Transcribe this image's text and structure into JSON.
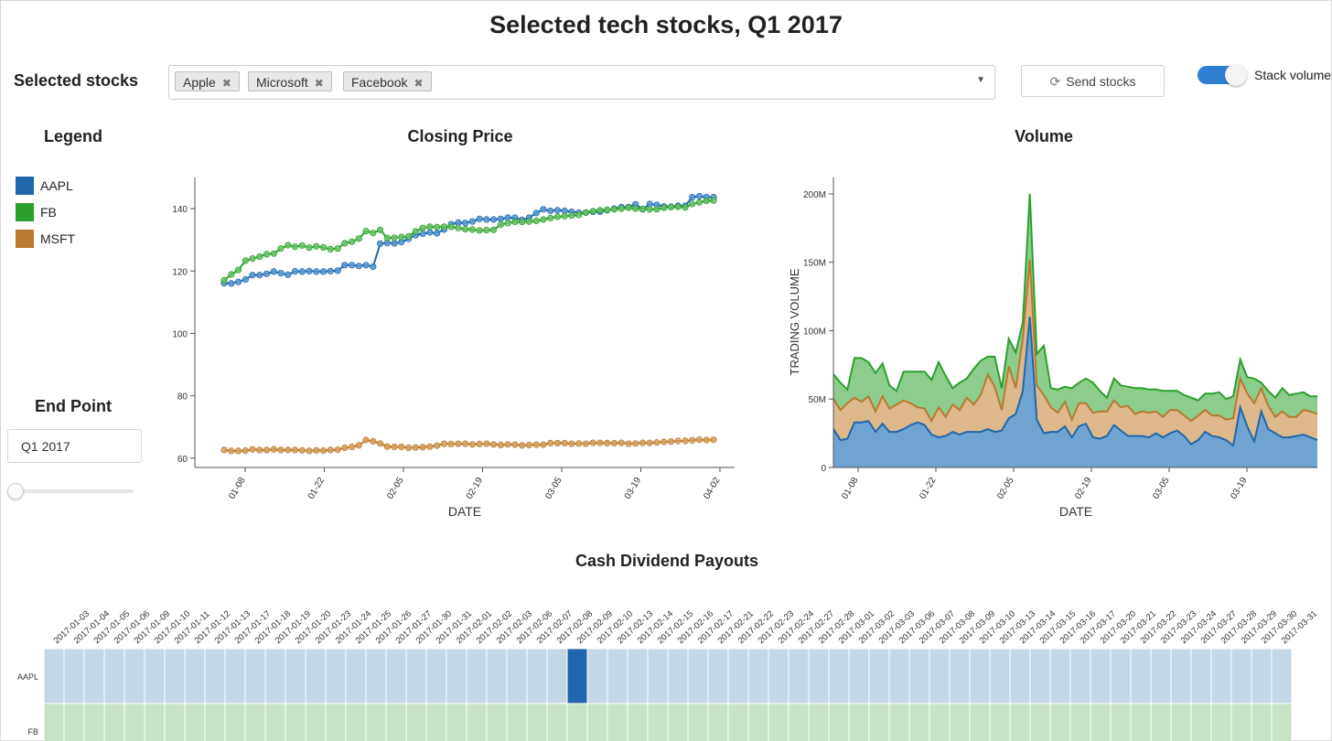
{
  "page": {
    "title": "Selected tech stocks, Q1 2017"
  },
  "controls": {
    "selected_label": "Selected stocks",
    "chips": [
      {
        "label": "Apple",
        "remove": "✖"
      },
      {
        "label": "Microsoft",
        "remove": "✖"
      },
      {
        "label": "Facebook",
        "remove": "✖"
      }
    ],
    "dropdown_caret": "▼",
    "send_icon": "⟳",
    "send_label": "Send stocks",
    "stack_label": "Stack volume"
  },
  "legend": {
    "title": "Legend",
    "items": [
      {
        "label": "AAPL",
        "color": "#2166ac"
      },
      {
        "label": "FB",
        "color": "#2ca02c"
      },
      {
        "label": "MSFT",
        "color": "#b97a2e"
      }
    ]
  },
  "endpoint": {
    "title": "End Point",
    "value": "Q1 2017",
    "slider": 0
  },
  "colors": {
    "aapl": "#2166ac",
    "aapl_point": "#5b9bd5",
    "fb": "#2ca02c",
    "fb_point": "#6cc36c",
    "msft": "#b97a2e",
    "msft_point": "#d6a15e",
    "aapl_area": "#6fa4d2",
    "msft_area": "#dcb88a",
    "fb_area": "#8ccd8c",
    "heat_aapl_light": "#c4d7e7",
    "heat_aapl_dark": "#1f66ae",
    "heat_fb_light": "#c7e2c5"
  },
  "chart_data": [
    {
      "type": "line",
      "title": "Closing Price",
      "xlabel": "DATE",
      "ylabel": "",
      "ylim": [
        57,
        150
      ],
      "x_ticks": [
        "01-08",
        "01-22",
        "02-05",
        "02-19",
        "03-05",
        "03-19",
        "04-02"
      ],
      "y_ticks": [
        60,
        80,
        100,
        120,
        140
      ],
      "series": [
        {
          "name": "AAPL",
          "values": [
            116.1,
            116.0,
            116.5,
            117.3,
            118.7,
            118.7,
            119.1,
            119.8,
            119.3,
            118.8,
            119.9,
            119.8,
            120.0,
            119.8,
            119.8,
            120.0,
            120.1,
            121.9,
            121.9,
            121.6,
            121.9,
            121.4,
            128.8,
            129.0,
            128.9,
            129.3,
            130.3,
            131.5,
            132.0,
            132.4,
            132.1,
            133.3,
            135.0,
            135.5,
            135.4,
            135.9,
            136.7,
            136.5,
            136.5,
            136.7,
            137.1,
            137.1,
            136.4,
            137.1,
            138.6,
            139.8,
            139.3,
            139.5,
            139.3,
            139.0,
            138.7,
            138.7,
            139.0,
            139.0,
            139.5,
            140.0,
            140.5,
            140.5,
            141.4,
            139.8,
            141.5,
            141.2,
            140.7,
            140.6,
            140.9,
            140.9,
            143.7,
            144.0,
            143.7,
            143.7
          ]
        },
        {
          "name": "FB",
          "values": [
            117.0,
            118.9,
            120.3,
            123.3,
            124.0,
            124.6,
            125.4,
            125.6,
            127.2,
            128.3,
            127.8,
            128.2,
            127.5,
            127.9,
            127.6,
            127.0,
            127.2,
            128.9,
            129.4,
            130.4,
            132.8,
            132.2,
            133.2,
            130.6,
            130.7,
            130.9,
            131.1,
            132.7,
            133.8,
            134.2,
            134.1,
            134.2,
            134.2,
            133.8,
            133.4,
            133.3,
            133.0,
            133.1,
            133.2,
            134.9,
            135.4,
            135.8,
            135.7,
            135.9,
            136.1,
            136.5,
            137.0,
            137.4,
            137.6,
            137.8,
            138.0,
            138.8,
            139.2,
            139.5,
            139.6,
            139.8,
            140.0,
            140.3,
            140.0,
            139.9,
            139.8,
            139.8,
            140.3,
            140.5,
            140.6,
            140.4,
            141.5,
            142.0,
            142.5,
            142.6
          ]
        },
        {
          "name": "MSFT",
          "values": [
            62.6,
            62.3,
            62.3,
            62.4,
            62.8,
            62.6,
            62.6,
            62.8,
            62.6,
            62.6,
            62.6,
            62.5,
            62.3,
            62.5,
            62.4,
            62.6,
            62.7,
            63.3,
            63.6,
            64.1,
            65.8,
            65.4,
            64.7,
            63.7,
            63.6,
            63.6,
            63.3,
            63.4,
            63.5,
            63.7,
            64.0,
            64.6,
            64.5,
            64.6,
            64.6,
            64.4,
            64.5,
            64.6,
            64.4,
            64.2,
            64.4,
            64.3,
            64.1,
            64.2,
            64.3,
            64.3,
            64.8,
            64.8,
            64.8,
            64.6,
            64.7,
            64.6,
            64.9,
            64.9,
            64.8,
            64.8,
            64.9,
            64.6,
            64.7,
            64.9,
            64.9,
            65.0,
            65.2,
            65.3,
            65.5,
            65.5,
            65.7,
            65.9,
            65.8,
            65.9
          ]
        }
      ]
    },
    {
      "type": "area",
      "title": "Volume",
      "xlabel": "DATE",
      "ylabel": "TRADING VOLUME",
      "stacked": true,
      "ylim": [
        0,
        212000000
      ],
      "x_ticks": [
        "01-08",
        "01-22",
        "02-05",
        "02-19",
        "03-05",
        "03-19"
      ],
      "y_ticks": [
        0,
        50000000,
        100000000,
        150000000,
        200000000
      ],
      "y_tick_labels": [
        "0",
        "50M",
        "100M",
        "150M",
        "200M"
      ],
      "series": [
        {
          "name": "AAPL",
          "values": [
            28,
            20,
            21,
            33,
            33,
            34,
            26,
            32,
            26,
            26,
            28,
            31,
            33,
            31,
            24,
            22,
            23,
            26,
            24,
            26,
            26,
            26,
            28,
            26,
            27,
            36,
            39,
            56,
            110,
            35,
            25,
            26,
            26,
            30,
            22,
            30,
            32,
            22,
            21,
            23,
            31,
            27,
            23,
            23,
            23,
            22,
            25,
            22,
            25,
            27,
            23,
            17,
            20,
            26,
            23,
            22,
            20,
            16,
            44,
            30,
            19,
            41,
            28,
            25,
            22,
            22,
            23,
            24,
            22,
            20
          ]
        },
        {
          "name": "MSFT",
          "values": [
            22,
            22,
            26,
            18,
            15,
            18,
            15,
            20,
            17,
            20,
            21,
            16,
            11,
            12,
            10,
            22,
            14,
            20,
            18,
            25,
            20,
            27,
            40,
            33,
            15,
            38,
            19,
            38,
            42,
            25,
            28,
            18,
            14,
            18,
            13,
            17,
            15,
            18,
            20,
            18,
            18,
            17,
            22,
            16,
            18,
            18,
            16,
            15,
            17,
            15,
            15,
            17,
            18,
            16,
            15,
            16,
            15,
            20,
            21,
            24,
            28,
            17,
            17,
            12,
            19,
            15,
            14,
            18,
            19,
            19
          ]
        },
        {
          "name": "FB",
          "values": [
            18,
            20,
            10,
            29,
            32,
            25,
            28,
            24,
            17,
            10,
            21,
            23,
            26,
            27,
            30,
            33,
            30,
            12,
            20,
            14,
            26,
            25,
            13,
            22,
            16,
            20,
            26,
            12,
            48,
            23,
            36,
            14,
            17,
            11,
            23,
            15,
            18,
            22,
            15,
            10,
            16,
            16,
            14,
            19,
            17,
            17,
            16,
            19,
            14,
            14,
            15,
            17,
            11,
            12,
            16,
            17,
            15,
            16,
            14,
            12,
            18,
            4,
            11,
            14,
            17,
            16,
            17,
            13,
            11,
            13
          ]
        }
      ]
    },
    {
      "type": "heatmap",
      "title": "Cash Dividend Payouts",
      "rows": [
        "AAPL",
        "FB"
      ],
      "columns": [
        "2017-01-03",
        "2017-01-04",
        "2017-01-05",
        "2017-01-06",
        "2017-01-09",
        "2017-01-10",
        "2017-01-11",
        "2017-01-12",
        "2017-01-13",
        "2017-01-17",
        "2017-01-18",
        "2017-01-19",
        "2017-01-20",
        "2017-01-23",
        "2017-01-24",
        "2017-01-25",
        "2017-01-26",
        "2017-01-27",
        "2017-01-30",
        "2017-01-31",
        "2017-02-01",
        "2017-02-02",
        "2017-02-03",
        "2017-02-06",
        "2017-02-07",
        "2017-02-08",
        "2017-02-09",
        "2017-02-10",
        "2017-02-13",
        "2017-02-14",
        "2017-02-15",
        "2017-02-16",
        "2017-02-17",
        "2017-02-21",
        "2017-02-22",
        "2017-02-23",
        "2017-02-24",
        "2017-02-27",
        "2017-02-28",
        "2017-03-01",
        "2017-03-02",
        "2017-03-03",
        "2017-03-06",
        "2017-03-07",
        "2017-03-08",
        "2017-03-09",
        "2017-03-10",
        "2017-03-13",
        "2017-03-14",
        "2017-03-15",
        "2017-03-16",
        "2017-03-17",
        "2017-03-20",
        "2017-03-21",
        "2017-03-22",
        "2017-03-23",
        "2017-03-24",
        "2017-03-27",
        "2017-03-28",
        "2017-03-29",
        "2017-03-30",
        "2017-03-31"
      ],
      "payouts": [
        {
          "row": "AAPL",
          "date": "2017-02-09",
          "value": 1
        }
      ]
    }
  ]
}
